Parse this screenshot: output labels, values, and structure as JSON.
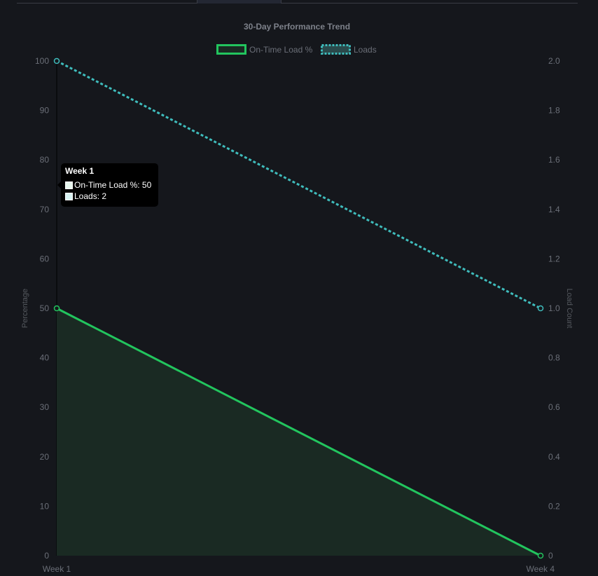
{
  "chart_data": {
    "type": "line",
    "title": "30-Day Performance Trend",
    "x": [
      "Week 1",
      "Week 4"
    ],
    "series": [
      {
        "name": "On-Time Load %",
        "axis": "left",
        "values": [
          50,
          0
        ],
        "color": "#22c55e",
        "fill": "#1a2a23",
        "style": "solid"
      },
      {
        "name": "Loads",
        "axis": "right",
        "values": [
          2,
          1
        ],
        "color": "#3fbcbc",
        "style": "dashed"
      }
    ],
    "ylabel": "Percentage",
    "y2label": "Load Count",
    "ylim": [
      0,
      100
    ],
    "y2lim": [
      0,
      2
    ],
    "yticks": [
      "0",
      "10",
      "20",
      "30",
      "40",
      "50",
      "60",
      "70",
      "80",
      "90",
      "100"
    ],
    "y2ticks": [
      "0",
      "0.2",
      "0.4",
      "0.6",
      "0.8",
      "1.0",
      "1.2",
      "1.4",
      "1.6",
      "1.8",
      "2.0"
    ],
    "legend_position": "top-center",
    "grid": false
  },
  "tooltip": {
    "title": "Week 1",
    "rows": [
      {
        "text": "On-Time Load %: 50",
        "swatch": "#e8f7ee"
      },
      {
        "text": "Loads: 2",
        "swatch": "#d7f2f2"
      }
    ]
  },
  "colors": {
    "background": "#15171c",
    "axis_text": "#6b6f78",
    "title_text": "#7d818a"
  }
}
